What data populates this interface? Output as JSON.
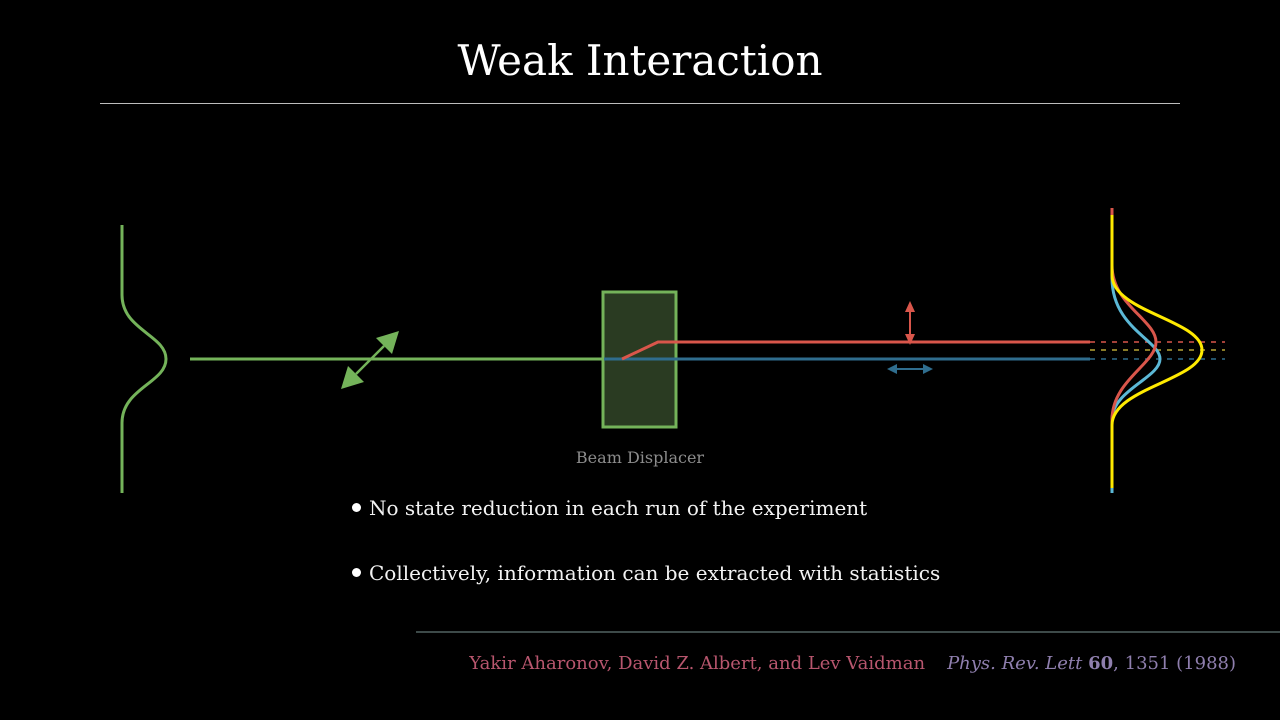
{
  "title": "Weak Interaction",
  "diagram": {
    "beam_displacer_label": "Beam Displacer",
    "colors": {
      "input_beam": "#74b35a",
      "displacer_fill": "#2a3b22",
      "upper_beam": "#d9564b",
      "lower_beam": "#2f6d8e",
      "detector_sum": "#ffea00",
      "detector_upper": "#d9564b",
      "detector_lower": "#5bb8d6"
    }
  },
  "bullets": [
    "No state reduction in each run of the experiment",
    "Collectively, information can be extracted with statistics"
  ],
  "citation": {
    "authors": "Yakir Aharonov, David Z. Albert, and Lev Vaidman",
    "journal": "Phys. Rev. Lett",
    "volume": "60",
    "pages_year": ", 1351 (1988)"
  }
}
